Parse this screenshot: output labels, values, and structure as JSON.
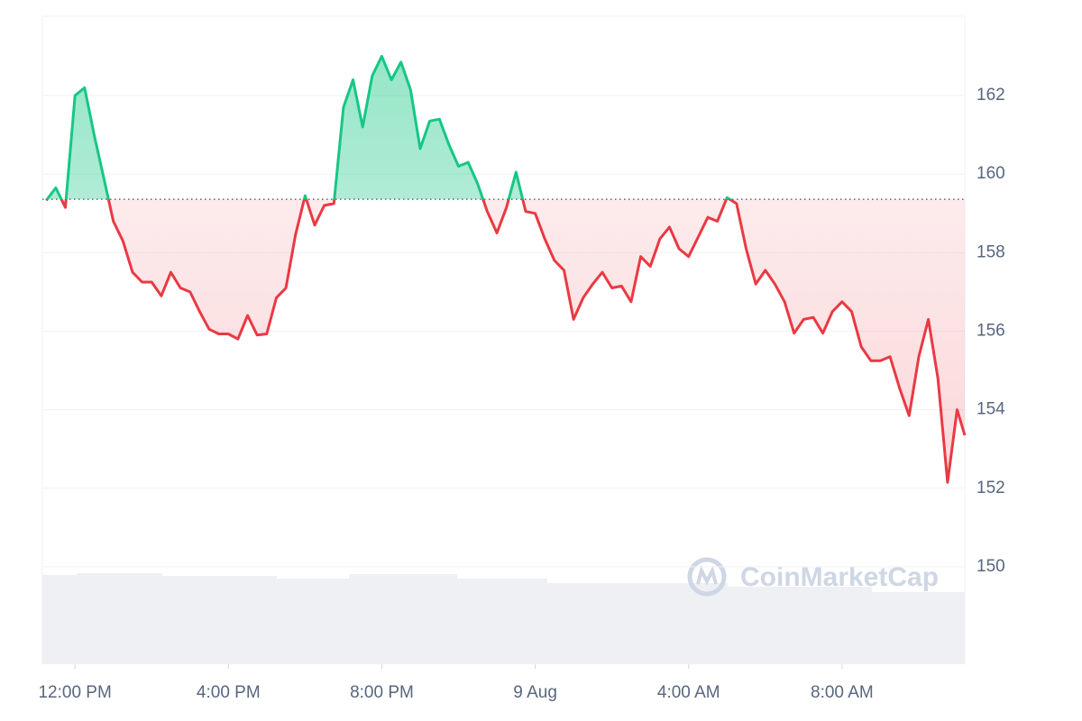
{
  "chart_data": {
    "type": "line",
    "watermark": "CoinMarketCap",
    "baseline": 159.36,
    "color_up": "#16c784",
    "color_down": "#ea3943",
    "grid": true,
    "xlim": [
      -0.85,
      23.2
    ],
    "ylim": [
      147.52,
      164.02
    ],
    "xticks": [
      {
        "value": 0,
        "label": "12:00 PM"
      },
      {
        "value": 4,
        "label": "4:00 PM"
      },
      {
        "value": 8,
        "label": "8:00 PM"
      },
      {
        "value": 12,
        "label": "9 Aug"
      },
      {
        "value": 16,
        "label": "4:00 AM"
      },
      {
        "value": 20,
        "label": "8:00 AM"
      }
    ],
    "yticks": [
      150,
      152,
      154,
      156,
      158,
      160,
      162
    ],
    "x": [
      -0.75,
      -0.5,
      -0.25,
      0,
      0.25,
      0.5,
      0.75,
      1,
      1.25,
      1.5,
      1.75,
      2,
      2.25,
      2.5,
      2.75,
      3,
      3.25,
      3.5,
      3.75,
      4,
      4.25,
      4.5,
      4.75,
      5,
      5.25,
      5.5,
      5.75,
      6,
      6.25,
      6.5,
      6.75,
      7,
      7.25,
      7.5,
      7.75,
      8,
      8.25,
      8.5,
      8.75,
      9,
      9.25,
      9.5,
      9.75,
      10,
      10.25,
      10.5,
      10.75,
      11,
      11.25,
      11.5,
      11.75,
      12,
      12.25,
      12.5,
      12.75,
      13,
      13.25,
      13.5,
      13.75,
      14,
      14.25,
      14.5,
      14.75,
      15,
      15.25,
      15.5,
      15.75,
      16,
      16.25,
      16.5,
      16.75,
      17,
      17.25,
      17.5,
      17.75,
      18,
      18.25,
      18.5,
      18.75,
      19,
      19.25,
      19.5,
      19.75,
      20,
      20.25,
      20.5,
      20.75,
      21,
      21.25,
      21.5,
      21.75,
      22,
      22.25,
      22.5,
      22.75,
      23,
      23.2
    ],
    "values": [
      159.33,
      159.65,
      159.15,
      162.0,
      162.2,
      161.0,
      159.9,
      158.8,
      158.3,
      157.5,
      157.25,
      157.25,
      156.9,
      157.5,
      157.1,
      157.0,
      156.5,
      156.05,
      155.93,
      155.93,
      155.8,
      156.4,
      155.9,
      155.93,
      156.85,
      157.1,
      158.45,
      159.45,
      158.7,
      159.2,
      159.25,
      161.7,
      162.4,
      161.2,
      162.5,
      163.0,
      162.4,
      162.85,
      162.15,
      160.65,
      161.35,
      161.4,
      160.75,
      160.2,
      160.3,
      159.75,
      159.05,
      158.5,
      159.15,
      160.05,
      159.05,
      159.0,
      158.35,
      157.8,
      157.55,
      156.3,
      156.85,
      157.2,
      157.5,
      157.1,
      157.15,
      156.75,
      157.9,
      157.65,
      158.35,
      158.65,
      158.1,
      157.9,
      158.4,
      158.9,
      158.8,
      159.4,
      159.25,
      158.1,
      157.2,
      157.55,
      157.2,
      156.75,
      155.95,
      156.3,
      156.35,
      155.95,
      156.5,
      156.75,
      156.5,
      155.6,
      155.25,
      155.25,
      155.35,
      154.55,
      153.85,
      155.35,
      156.3,
      154.8,
      152.15,
      154.0,
      153.35
    ]
  }
}
